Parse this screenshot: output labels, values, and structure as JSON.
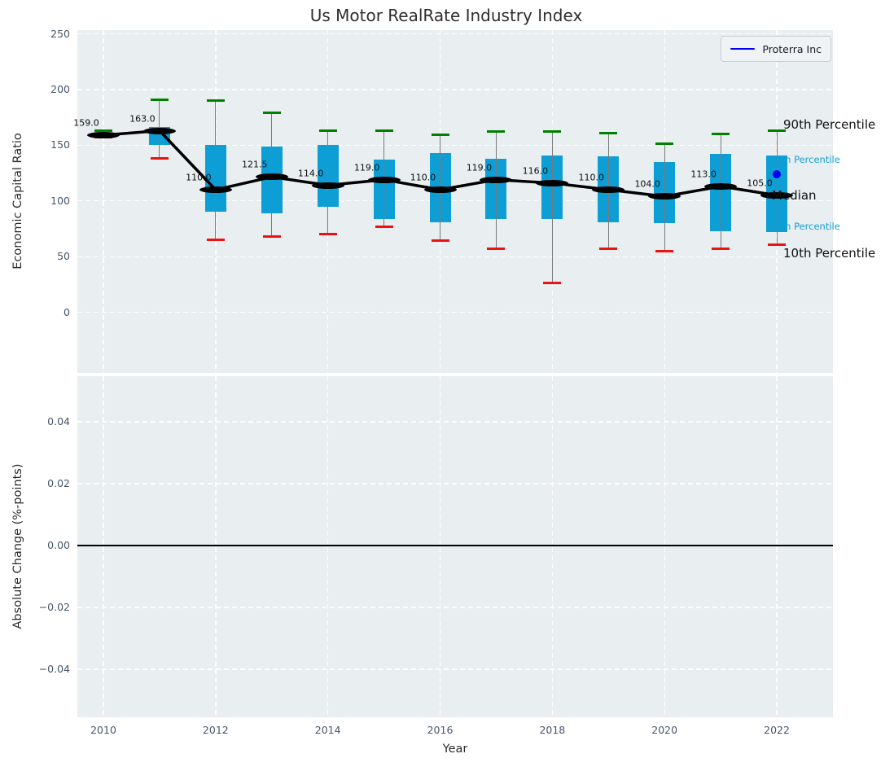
{
  "title": "Us Motor RealRate Industry Index",
  "legend": {
    "label": "Proterra Inc",
    "color": "#0000ee"
  },
  "right_labels": {
    "p90": "90th Percentile",
    "p75": "75th Percentile",
    "median": "Median",
    "p25": "25th Percentile",
    "p10": "10th Percentile"
  },
  "colors": {
    "box": "#0d9ed6",
    "whisker": "#7a7a7a",
    "cap_90th": "#008000",
    "cap_10th": "#ee1111",
    "median": "#000000",
    "percentile_label_blue": "#18a0d5",
    "proterra_blue": "#0000ee",
    "panel_background": "#e9eef0",
    "grid": "#ffffff",
    "tick_text": "#47566a"
  },
  "chart_data": [
    {
      "type": "boxplot",
      "title": "Us Motor RealRate Industry Index",
      "ylabel": "Economic Capital Ratio",
      "ylim": [
        -55,
        253
      ],
      "yticks": [
        "250",
        "200",
        "150",
        "100",
        "50",
        "0"
      ],
      "ytick_values": [
        250,
        200,
        150,
        100,
        50,
        0
      ],
      "xticks": [
        "2010",
        "2012",
        "2014",
        "2016",
        "2018",
        "2020",
        "2022"
      ],
      "xtick_values": [
        2010,
        2012,
        2014,
        2016,
        2018,
        2020,
        2022
      ],
      "grid": true,
      "legend_position": "upper right",
      "years": [
        2010,
        2011,
        2012,
        2013,
        2014,
        2015,
        2016,
        2017,
        2018,
        2019,
        2020,
        2021,
        2022
      ],
      "series": {
        "p90": [
          163,
          191,
          190,
          179,
          163,
          163,
          159,
          162,
          162,
          161,
          151,
          160,
          163
        ],
        "p75": [
          161,
          166,
          150,
          149,
          150,
          137,
          143,
          138,
          141,
          140,
          135,
          142,
          141
        ],
        "median": [
          159,
          163,
          110,
          121.5,
          114,
          119,
          110,
          119,
          116,
          110,
          104,
          113,
          105
        ],
        "p25": [
          158,
          150,
          90,
          89,
          95,
          84,
          81,
          84,
          84,
          81,
          80,
          73,
          72
        ],
        "p10": [
          157,
          138,
          65,
          68,
          70,
          77,
          64,
          57,
          26,
          57,
          55,
          57,
          61
        ]
      },
      "median_labels": [
        "159.0",
        "163.0",
        "110.0",
        "121.5",
        "114.0",
        "119.0",
        "110.0",
        "119.0",
        "116.0",
        "110.0",
        "104.0",
        "113.0",
        "105.0"
      ],
      "highlight_point": {
        "name": "Proterra Inc",
        "year": 2022,
        "value": 124
      },
      "percentile_annotations": [
        "90th Percentile",
        "75th Percentile",
        "Median",
        "25th Percentile",
        "10th Percentile"
      ]
    },
    {
      "type": "line",
      "ylabel": "Absolute Change (%-points)",
      "xlabel": "Year",
      "ylim": [
        -0.055,
        0.055
      ],
      "yticks": [
        "0.04",
        "0.02",
        "0.00",
        "−0.02",
        "−0.04"
      ],
      "ytick_values": [
        0.04,
        0.02,
        0,
        -0.02,
        -0.04
      ],
      "xticks": [
        "2010",
        "2012",
        "2014",
        "2016",
        "2018",
        "2020",
        "2022"
      ],
      "xtick_values": [
        2010,
        2012,
        2014,
        2016,
        2018,
        2020,
        2022
      ],
      "grid": true,
      "zero_line": 0.0,
      "series": []
    }
  ]
}
